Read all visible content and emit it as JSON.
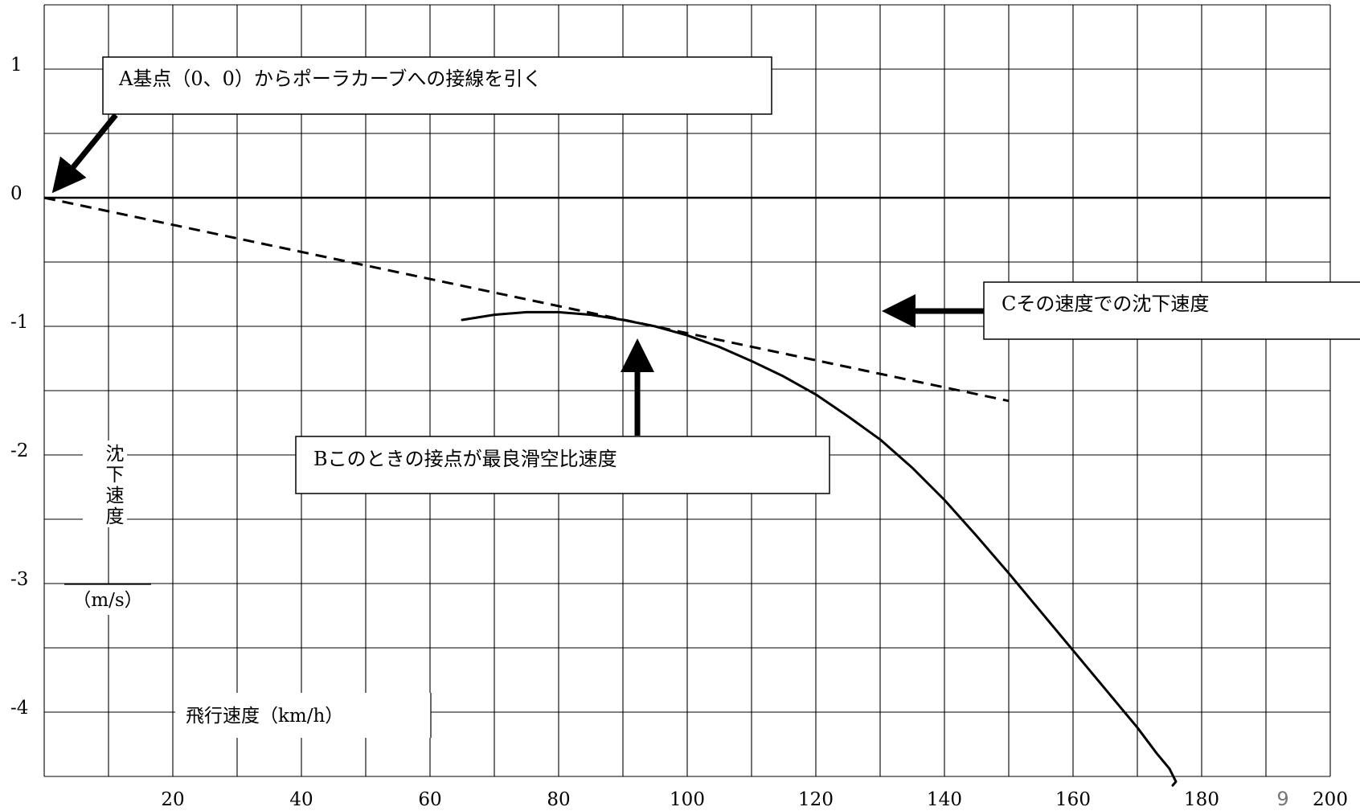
{
  "chart_data": {
    "type": "line",
    "x_ticks": [
      "20",
      "40",
      "60",
      "80",
      "100",
      "120",
      "140",
      "160",
      "180",
      "200"
    ],
    "y_ticks": [
      "1",
      "0",
      "-1",
      "-2",
      "-3",
      "-4"
    ],
    "xlim": [
      0,
      200
    ],
    "ylim": [
      -4.5,
      1.5
    ],
    "x_gridlines": [
      0,
      10,
      20,
      30,
      40,
      50,
      60,
      70,
      80,
      90,
      100,
      110,
      120,
      130,
      140,
      150,
      160,
      170,
      180,
      190,
      200
    ],
    "y_gridlines": [
      1.5,
      1,
      0.5,
      0,
      -0.5,
      -1,
      -1.5,
      -2,
      -2.5,
      -3,
      -3.5,
      -4,
      -4.5
    ],
    "grid": true,
    "xlabel": "飛行速度（km/h）",
    "ylabel_chars": [
      "沈",
      "下",
      "速",
      "度"
    ],
    "ylabel_unit": "（m/s）",
    "series": [
      {
        "style": "solid",
        "color": "#000000",
        "x": [
          65,
          70,
          75,
          80,
          85,
          90,
          95,
          100,
          105,
          110,
          115,
          120,
          125,
          130,
          135,
          140,
          145,
          150,
          155,
          160,
          165,
          170,
          173,
          175,
          176,
          175.5
        ],
        "y": [
          -0.95,
          -0.91,
          -0.89,
          -0.89,
          -0.91,
          -0.95,
          -1.0,
          -1.07,
          -1.16,
          -1.27,
          -1.39,
          -1.53,
          -1.7,
          -1.88,
          -2.1,
          -2.35,
          -2.63,
          -2.92,
          -3.22,
          -3.52,
          -3.82,
          -4.12,
          -4.32,
          -4.44,
          -4.54,
          -4.57
        ]
      },
      {
        "style": "dashed",
        "color": "#000000",
        "x": [
          0,
          150
        ],
        "y": [
          0,
          -1.58
        ]
      }
    ],
    "annotations": [
      "A基点（0、0）からポーラカーブへの接線を引く",
      "Bこのときの接点が最良滑空比速度",
      "Cその速度での沈下速度"
    ]
  },
  "page_number": "9"
}
